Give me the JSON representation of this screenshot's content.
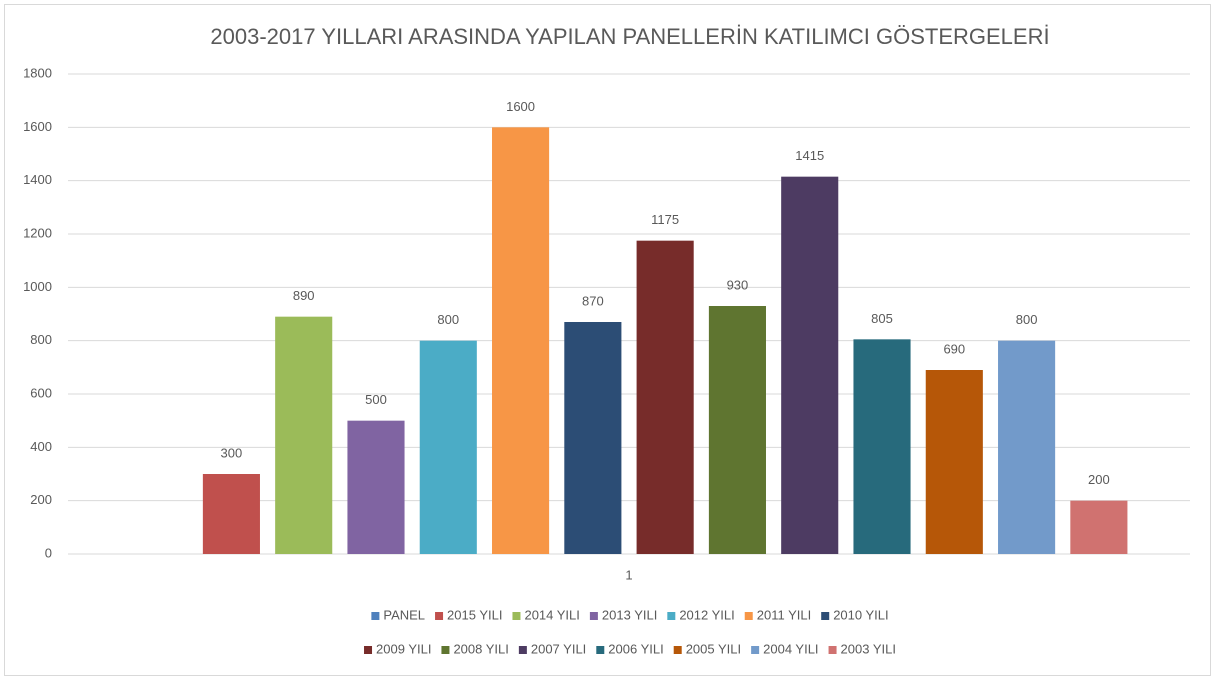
{
  "chart_data": {
    "type": "bar",
    "title": "2003-2017 YILLARI ARASINDA YAPILAN PANELLERİN KATILIMCI GÖSTERGELERİ",
    "categories": [
      "1"
    ],
    "series": [
      {
        "name": "PANEL",
        "color": "#4f81bd",
        "values": [
          null
        ]
      },
      {
        "name": "2015 YILI",
        "color": "#c0504d",
        "values": [
          300
        ]
      },
      {
        "name": "2014 YILI",
        "color": "#9bbb59",
        "values": [
          890
        ]
      },
      {
        "name": "2013 YILI",
        "color": "#8064a2",
        "values": [
          500
        ]
      },
      {
        "name": "2012 YILI",
        "color": "#4bacc6",
        "values": [
          800
        ]
      },
      {
        "name": "2011 YILI",
        "color": "#f79646",
        "values": [
          1600
        ]
      },
      {
        "name": "2010 YILI",
        "color": "#2c4d75",
        "values": [
          870
        ]
      },
      {
        "name": "2009 YILI",
        "color": "#772c2a",
        "values": [
          1175
        ]
      },
      {
        "name": "2008 YILI",
        "color": "#5f7530",
        "values": [
          930
        ]
      },
      {
        "name": "2007 YILI",
        "color": "#4d3b62",
        "values": [
          1415
        ]
      },
      {
        "name": "2006 YILI",
        "color": "#276a7c",
        "values": [
          805
        ]
      },
      {
        "name": "2005 YILI",
        "color": "#b65708",
        "values": [
          690
        ]
      },
      {
        "name": "2004 YILI",
        "color": "#729aca",
        "values": [
          800
        ]
      },
      {
        "name": "2003 YILI",
        "color": "#d07270",
        "values": [
          200
        ]
      }
    ],
    "ylim": [
      0,
      1800
    ],
    "yticks": [
      0,
      200,
      400,
      600,
      800,
      1000,
      1200,
      1400,
      1600,
      1800
    ],
    "grid": true,
    "legend": "bottom"
  }
}
